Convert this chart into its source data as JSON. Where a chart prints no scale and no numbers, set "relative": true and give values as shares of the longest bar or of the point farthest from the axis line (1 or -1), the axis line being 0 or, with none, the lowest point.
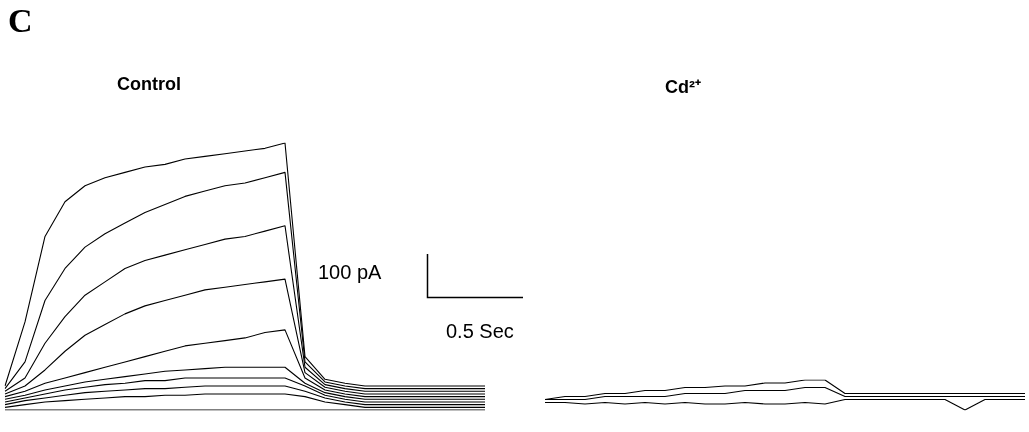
{
  "chart_data": [
    {
      "type": "line",
      "relative": true,
      "title": "Control",
      "categories": [
        null,
        null,
        null,
        null,
        null,
        null,
        null,
        null,
        null,
        null,
        null,
        null,
        null,
        null,
        null,
        null,
        null,
        null,
        null,
        null,
        null,
        null,
        null,
        null,
        null
      ],
      "annotations": [
        "C",
        "100 pA",
        "0.5 Sec"
      ],
      "series": [
        {
          "color": "#000000",
          "values": [
            0.09,
            0.33,
            0.65,
            0.78,
            0.84,
            0.87,
            0.89,
            0.91,
            0.92,
            0.94,
            0.95,
            0.96,
            0.97,
            0.98,
            1.0,
            0.2,
            0.115,
            0.1,
            0.09,
            0.09,
            0.09,
            0.09,
            0.09,
            0.09,
            0.09
          ]
        },
        {
          "color": "#000000",
          "values": [
            0.08,
            0.18,
            0.41,
            0.53,
            0.61,
            0.66,
            0.7,
            0.74,
            0.77,
            0.8,
            0.82,
            0.84,
            0.85,
            0.87,
            0.89,
            0.18,
            0.105,
            0.09,
            0.08,
            0.08,
            0.08,
            0.08,
            0.08,
            0.08,
            0.08
          ]
        },
        {
          "color": "#000000",
          "values": [
            0.07,
            0.12,
            0.25,
            0.35,
            0.43,
            0.48,
            0.53,
            0.56,
            0.58,
            0.6,
            0.62,
            0.64,
            0.65,
            0.67,
            0.69,
            0.16,
            0.095,
            0.08,
            0.07,
            0.07,
            0.07,
            0.07,
            0.07,
            0.07,
            0.07
          ]
        },
        {
          "color": "#000000",
          "values": [
            0.06,
            0.09,
            0.15,
            0.22,
            0.28,
            0.32,
            0.36,
            0.39,
            0.41,
            0.43,
            0.45,
            0.46,
            0.47,
            0.48,
            0.49,
            0.14,
            0.085,
            0.07,
            0.06,
            0.06,
            0.06,
            0.06,
            0.06,
            0.06,
            0.06
          ]
        },
        {
          "color": "#000000",
          "values": [
            0.05,
            0.07,
            0.1,
            0.12,
            0.14,
            0.16,
            0.18,
            0.2,
            0.22,
            0.24,
            0.25,
            0.26,
            0.27,
            0.29,
            0.3,
            0.12,
            0.075,
            0.06,
            0.05,
            0.05,
            0.05,
            0.05,
            0.05,
            0.05,
            0.05
          ]
        },
        {
          "color": "#000000",
          "values": [
            0.04,
            0.055,
            0.075,
            0.09,
            0.105,
            0.115,
            0.125,
            0.135,
            0.145,
            0.15,
            0.155,
            0.16,
            0.16,
            0.16,
            0.16,
            0.1,
            0.065,
            0.05,
            0.04,
            0.04,
            0.04,
            0.04,
            0.04,
            0.04,
            0.04
          ]
        },
        {
          "color": "#000000",
          "values": [
            0.03,
            0.045,
            0.06,
            0.075,
            0.085,
            0.095,
            0.1,
            0.11,
            0.11,
            0.12,
            0.12,
            0.12,
            0.12,
            0.12,
            0.12,
            0.09,
            0.055,
            0.04,
            0.03,
            0.03,
            0.03,
            0.03,
            0.03,
            0.03,
            0.03
          ]
        },
        {
          "color": "#000000",
          "values": [
            0.02,
            0.035,
            0.045,
            0.055,
            0.065,
            0.07,
            0.075,
            0.08,
            0.08,
            0.085,
            0.09,
            0.09,
            0.09,
            0.09,
            0.09,
            0.07,
            0.045,
            0.03,
            0.02,
            0.02,
            0.02,
            0.02,
            0.02,
            0.02,
            0.02
          ]
        },
        {
          "color": "#000000",
          "values": [
            0.01,
            0.02,
            0.03,
            0.035,
            0.04,
            0.045,
            0.05,
            0.05,
            0.055,
            0.055,
            0.06,
            0.06,
            0.06,
            0.06,
            0.06,
            0.05,
            0.03,
            0.02,
            0.01,
            0.01,
            0.01,
            0.01,
            0.01,
            0.01,
            0.01
          ]
        },
        {
          "color": "#000000",
          "values": [
            0.0,
            0.0,
            0.0,
            0.0,
            0.0,
            0.0,
            0.0,
            0.0,
            0.0,
            0.0,
            0.0,
            0.0,
            0.0,
            0.0,
            0.0,
            0.0,
            0.0,
            0.0,
            0.0,
            0.0,
            0.0,
            0.0,
            0.0,
            0.0,
            0.0
          ]
        }
      ]
    },
    {
      "type": "line",
      "relative": true,
      "title": "Cd²⁺",
      "categories": [
        null,
        null,
        null,
        null,
        null,
        null,
        null,
        null,
        null,
        null,
        null,
        null,
        null,
        null,
        null,
        null,
        null,
        null,
        null,
        null,
        null,
        null,
        null,
        null,
        null
      ],
      "series": [
        {
          "color": "#000000",
          "values": [
            0.35,
            0.45,
            0.45,
            0.55,
            0.55,
            0.65,
            0.65,
            0.75,
            0.75,
            0.8,
            0.8,
            0.9,
            0.9,
            1.0,
            1.0,
            0.55,
            0.55,
            0.55,
            0.55,
            0.55,
            0.55,
            0.55,
            0.55,
            0.55,
            0.55
          ]
        },
        {
          "color": "#000000",
          "values": [
            0.35,
            0.35,
            0.35,
            0.45,
            0.45,
            0.45,
            0.45,
            0.55,
            0.55,
            0.55,
            0.65,
            0.65,
            0.65,
            0.75,
            0.75,
            0.45,
            0.45,
            0.45,
            0.45,
            0.45,
            0.45,
            0.45,
            0.45,
            0.45,
            0.45
          ]
        },
        {
          "color": "#000000",
          "values": [
            0.25,
            0.25,
            0.2,
            0.25,
            0.2,
            0.25,
            0.2,
            0.25,
            0.2,
            0.2,
            0.25,
            0.2,
            0.2,
            0.25,
            0.2,
            0.35,
            0.35,
            0.35,
            0.35,
            0.35,
            0.35,
            0.0,
            0.35,
            0.35,
            0.35
          ]
        }
      ]
    }
  ]
}
